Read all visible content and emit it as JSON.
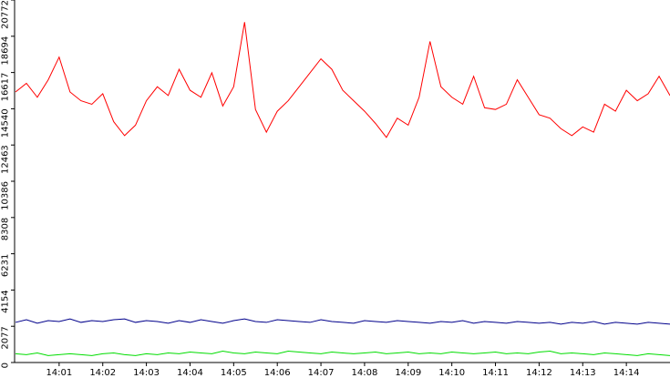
{
  "chart_data": {
    "type": "line",
    "categories": [
      null,
      null,
      null,
      null,
      "14:01",
      null,
      null,
      null,
      "14:02",
      null,
      null,
      null,
      "14:03",
      null,
      null,
      null,
      "14:04",
      null,
      null,
      null,
      "14:05",
      null,
      null,
      null,
      "14:06",
      null,
      null,
      null,
      "14:07",
      null,
      null,
      null,
      "14:08",
      null,
      null,
      null,
      "14:09",
      null,
      null,
      null,
      "14:10",
      null,
      null,
      null,
      "14:11",
      null,
      null,
      null,
      "14:12",
      null,
      null,
      null,
      "14:13",
      null,
      null,
      null,
      "14:14",
      null,
      null,
      null,
      null
    ],
    "series": [
      {
        "color": "#ff0000",
        "values": [
          15500,
          16000,
          15200,
          16200,
          17500,
          15500,
          15000,
          14800,
          15400,
          13800,
          13000,
          13600,
          15000,
          15800,
          15300,
          16800,
          15600,
          15200,
          16600,
          14700,
          15800,
          19500,
          14500,
          13200,
          14400,
          15000,
          15800,
          16600,
          17400,
          16800,
          15600,
          15000,
          14400,
          13700,
          12900,
          14000,
          13600,
          15200,
          18400,
          15800,
          15200,
          14800,
          16400,
          14600,
          14500,
          14800,
          16200,
          15200,
          14200,
          14000,
          13400,
          13000,
          13500,
          13200,
          14800,
          14400,
          15600,
          15000,
          15400,
          16400,
          15300
        ]
      },
      {
        "color": "#00008b",
        "values": [
          2300,
          2450,
          2250,
          2400,
          2350,
          2500,
          2300,
          2400,
          2350,
          2450,
          2500,
          2300,
          2400,
          2350,
          2250,
          2400,
          2300,
          2450,
          2350,
          2250,
          2400,
          2500,
          2350,
          2300,
          2450,
          2400,
          2350,
          2300,
          2450,
          2350,
          2300,
          2250,
          2400,
          2350,
          2300,
          2400,
          2350,
          2300,
          2250,
          2350,
          2300,
          2400,
          2250,
          2350,
          2300,
          2250,
          2350,
          2300,
          2250,
          2300,
          2200,
          2300,
          2250,
          2350,
          2200,
          2300,
          2250,
          2200,
          2300,
          2250,
          2200
        ]
      },
      {
        "color": "#00dd00",
        "values": [
          500,
          450,
          550,
          400,
          450,
          500,
          450,
          400,
          500,
          550,
          450,
          400,
          500,
          450,
          550,
          500,
          600,
          550,
          500,
          650,
          550,
          500,
          600,
          550,
          500,
          650,
          600,
          550,
          500,
          600,
          550,
          500,
          550,
          600,
          500,
          550,
          600,
          500,
          550,
          500,
          600,
          550,
          500,
          550,
          600,
          500,
          550,
          500,
          600,
          650,
          500,
          550,
          500,
          450,
          550,
          500,
          450,
          400,
          500,
          450,
          400
        ]
      }
    ],
    "ylim": [
      0,
      20772
    ],
    "yticks": [
      0,
      2077,
      4154,
      6231,
      8308,
      10386,
      12463,
      14540,
      16617,
      18694,
      20772
    ]
  }
}
